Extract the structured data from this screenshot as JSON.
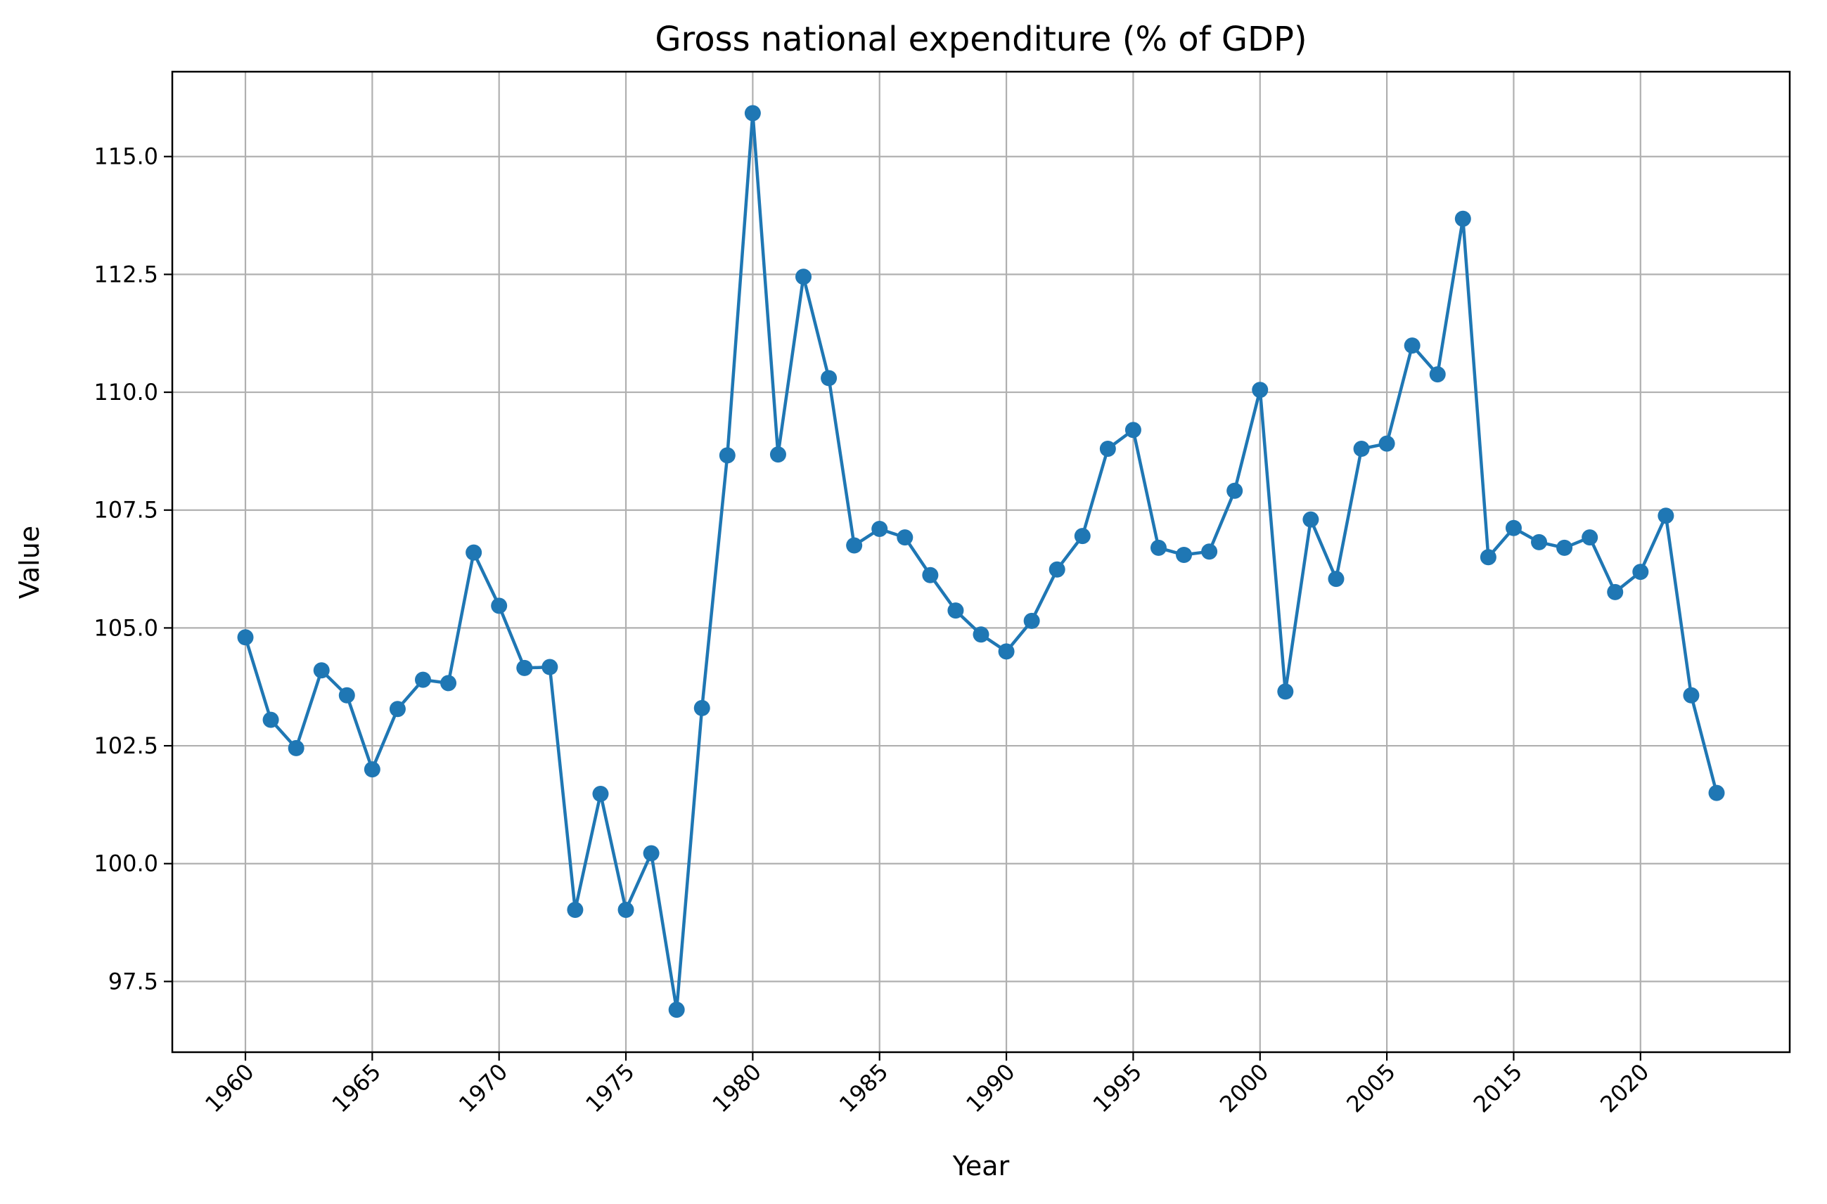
{
  "chart_data": {
    "type": "line",
    "title": "Gross national expenditure (% of GDP)",
    "xlabel": "Year",
    "ylabel": "Value",
    "grid": true,
    "markers": true,
    "xticks": [
      "1960",
      "1965",
      "1970",
      "1975",
      "1980",
      "1985",
      "1990",
      "1995",
      "2000",
      "2005",
      "2015",
      "2020"
    ],
    "yticks": [
      "97.5",
      "100.0",
      "102.5",
      "105.0",
      "107.5",
      "110.0",
      "112.5",
      "115.0"
    ],
    "ylim": [
      96.0,
      116.8
    ],
    "series": [
      {
        "color": "#1f77b4",
        "x": [
          1960,
          1961,
          1962,
          1963,
          1964,
          1965,
          1966,
          1967,
          1968,
          1969,
          1970,
          1971,
          1972,
          1973,
          1974,
          1975,
          1976,
          1977,
          1978,
          1979,
          1980,
          1981,
          1982,
          1983,
          1984,
          1985,
          1986,
          1987,
          1988,
          1989,
          1990,
          1991,
          1992,
          1993,
          1994,
          1995,
          1996,
          1997,
          1998,
          1999,
          2000,
          2001,
          2002,
          2003,
          2004,
          2005,
          2006,
          2007,
          2008,
          2014,
          2015,
          2016,
          2017,
          2018,
          2019,
          2020,
          2021,
          2022,
          2023
        ],
        "values": [
          104.8,
          103.05,
          102.45,
          104.1,
          103.57,
          102.0,
          103.28,
          103.9,
          103.83,
          106.6,
          105.47,
          104.15,
          104.17,
          99.02,
          101.48,
          99.02,
          100.22,
          96.9,
          103.3,
          108.66,
          115.92,
          108.68,
          112.45,
          110.3,
          106.75,
          107.1,
          106.92,
          106.12,
          105.37,
          104.86,
          104.5,
          105.15,
          106.24,
          106.95,
          108.8,
          109.2,
          106.7,
          106.55,
          106.62,
          107.91,
          110.05,
          103.65,
          107.3,
          106.04,
          108.8,
          108.91,
          110.99,
          110.38,
          113.68,
          106.5,
          107.12,
          106.82,
          106.7,
          106.92,
          105.76,
          106.19,
          107.38,
          103.57,
          101.5
        ]
      }
    ]
  }
}
